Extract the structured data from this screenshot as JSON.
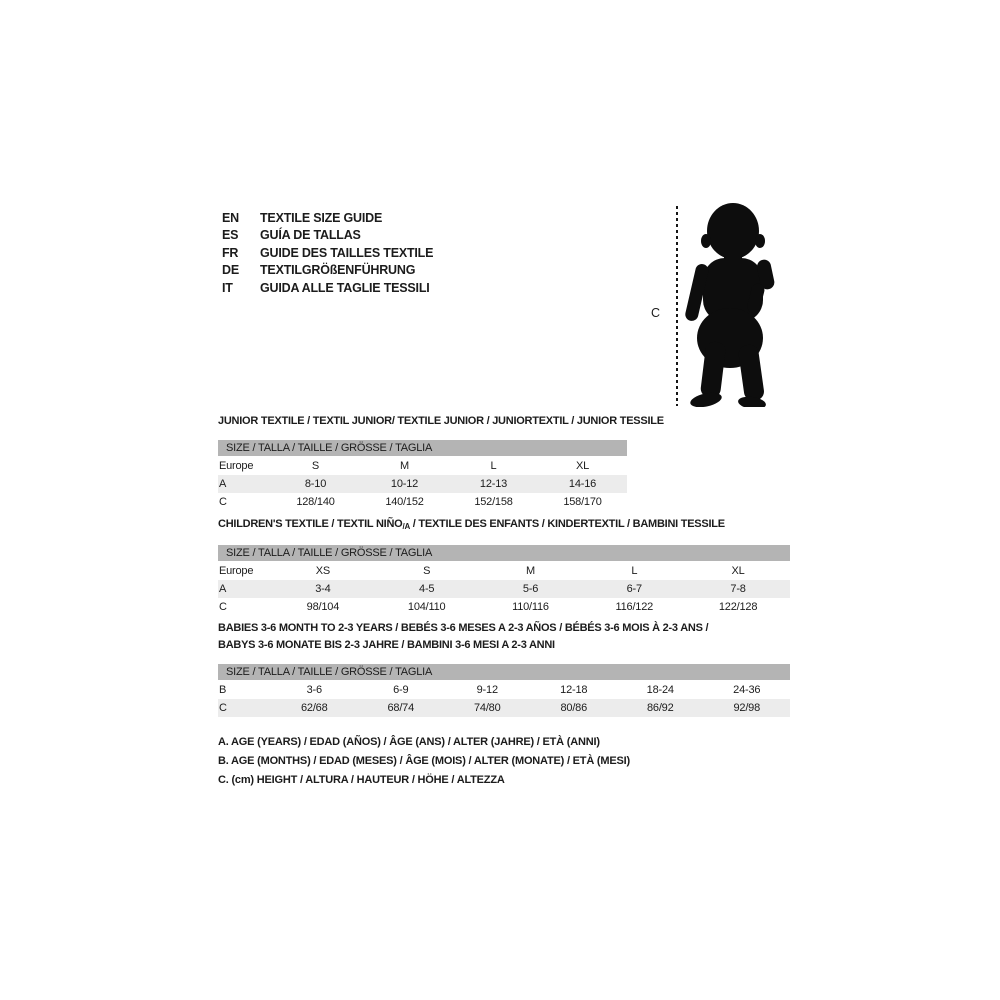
{
  "colors": {
    "text": "#1c1c1c",
    "size_bar_bg": "#b4b4b4",
    "row_alt_bg": "#ececec",
    "silhouette": "#0d0d0d"
  },
  "languages": [
    {
      "code": "EN",
      "label": "TEXTILE SIZE GUIDE"
    },
    {
      "code": "ES",
      "label": "GUÍA DE TALLAS"
    },
    {
      "code": "FR",
      "label": "GUIDE DES TAILLES TEXTILE"
    },
    {
      "code": "DE",
      "label": "TEXTILGRÖßENFÜHRUNG"
    },
    {
      "code": "IT",
      "label": "GUIDA ALLE TAGLIE TESSILI"
    }
  ],
  "figure": {
    "measure_label": "C"
  },
  "sections": [
    {
      "title": "JUNIOR TEXTILE / TEXTIL JUNIOR/ TEXTILE JUNIOR / JUNIORTEXTIL / JUNIOR TESSILE",
      "size_bar": "SIZE / TALLA / TAILLE / GRÖSSE / TAGLIA",
      "rows": [
        {
          "label": "Europe",
          "values": [
            "S",
            "M",
            "L",
            "XL"
          ]
        },
        {
          "label": "A",
          "values": [
            "8-10",
            "10-12",
            "12-13",
            "14-16"
          ]
        },
        {
          "label": "C",
          "values": [
            "128/140",
            "140/152",
            "152/158",
            "158/170"
          ]
        }
      ]
    },
    {
      "title_prefix": "CHILDREN'S TEXTILE / TEXTIL NIÑO",
      "title_sub": "/A",
      "title_suffix": " / TEXTILE DES ENFANTS / KINDERTEXTIL / BAMBINI TESSILE",
      "size_bar": "SIZE / TALLA / TAILLE / GRÖSSE / TAGLIA",
      "rows": [
        {
          "label": "Europe",
          "values": [
            "XS",
            "S",
            "M",
            "L",
            "XL"
          ]
        },
        {
          "label": "A",
          "values": [
            "3-4",
            "4-5",
            "5-6",
            "6-7",
            "7-8"
          ]
        },
        {
          "label": "C",
          "values": [
            "98/104",
            "104/110",
            "110/116",
            "116/122",
            "122/128"
          ]
        }
      ]
    },
    {
      "title_line1": "BABIES 3-6 MONTH TO 2-3 YEARS / BEBÉS 3-6 MESES A 2-3 AÑOS / BÉBÉS 3-6 MOIS À 2-3 ANS /",
      "title_line2": "BABYS 3-6 MONATE BIS 2-3 JAHRE / BAMBINI 3-6 MESI A 2-3 ANNI",
      "size_bar": "SIZE / TALLA / TAILLE / GRÖSSE / TAGLIA",
      "rows": [
        {
          "label": "B",
          "values": [
            "3-6",
            "6-9",
            "9-12",
            "12-18",
            "18-24",
            "24-36"
          ]
        },
        {
          "label": "C",
          "values": [
            "62/68",
            "68/74",
            "74/80",
            "80/86",
            "86/92",
            "92/98"
          ]
        }
      ]
    }
  ],
  "legend": [
    "A. AGE (YEARS) / EDAD (AÑOS) / ÂGE (ANS) / ALTER (JAHRE) / ETÀ (ANNI)",
    "B. AGE (MONTHS) / EDAD (MESES) / ÂGE (MOIS) / ALTER (MONATE) / ETÀ (MESI)",
    "C. (cm) HEIGHT / ALTURA / HAUTEUR / HÖHE / ALTEZZA"
  ]
}
